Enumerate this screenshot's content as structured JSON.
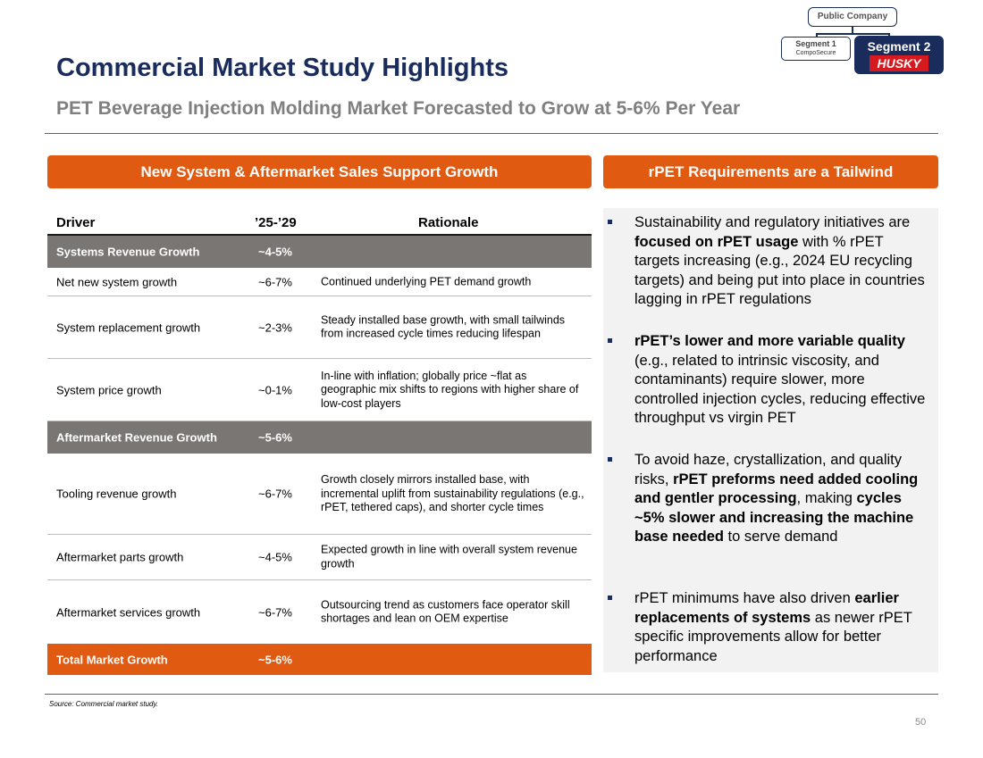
{
  "header": {
    "title": "Commercial Market Study Highlights",
    "subtitle": "PET Beverage Injection Molding Market Forecasted to Grow at 5-6% Per Year"
  },
  "badges": {
    "public": "Public Company",
    "segment1": "Segment 1",
    "segment1_logo": "CompoSecure",
    "segment2": "Segment 2",
    "segment2_logo": "HUSKY"
  },
  "left_panel": {
    "header": "New System & Aftermarket Sales Support Growth",
    "columns": [
      "Driver",
      "’25-’29",
      "Rationale"
    ],
    "rows": [
      {
        "driver": "Systems Revenue Growth",
        "range": "~4-5%",
        "rationale": ""
      },
      {
        "driver": "Net new system growth",
        "range": "~6-7%",
        "rationale": "Continued underlying PET demand growth"
      },
      {
        "driver": "System replacement growth",
        "range": "~2-3%",
        "rationale": "Steady installed base growth, with small tailwinds from increased cycle times reducing lifespan"
      },
      {
        "driver": "System price growth",
        "range": "~0-1%",
        "rationale": "In-line with inflation; globally price ~flat as geographic mix shifts to regions with higher share of low-cost players"
      },
      {
        "driver": "Aftermarket Revenue Growth",
        "range": "~5-6%",
        "rationale": ""
      },
      {
        "driver": "Tooling revenue growth",
        "range": "~6-7%",
        "rationale": "Growth closely mirrors installed base, with incremental uplift from sustainability regulations (e.g., rPET, tethered caps), and shorter cycle times"
      },
      {
        "driver": "Aftermarket parts growth",
        "range": "~4-5%",
        "rationale": "Expected growth in line with overall system revenue growth"
      },
      {
        "driver": "Aftermarket services growth",
        "range": "~6-7%",
        "rationale": "Outsourcing trend as customers face operator skill shortages and lean on OEM expertise"
      },
      {
        "driver": "Total Market Growth",
        "range": "~5-6%",
        "rationale": ""
      }
    ]
  },
  "right_panel": {
    "header": "rPET Requirements are a Tailwind",
    "bullets": [
      {
        "t1": "Sustainability and regulatory initiatives are ",
        "b1": "focused on rPET usage",
        "t2": " with % rPET targets increasing (e.g., 2024 EU recycling targets) and being put into place in countries lagging in rPET regulations",
        "b2": "",
        "t3": "",
        "b3": "",
        "t4": ""
      },
      {
        "t1": "",
        "b1": "rPET’s lower and more variable quality",
        "t2": " (e.g., related to intrinsic viscosity, and contaminants) require slower, more controlled injection cycles, reducing effective throughput vs virgin PET",
        "b2": "",
        "t3": "",
        "b3": "",
        "t4": ""
      },
      {
        "t1": "To avoid haze, crystallization, and quality risks, ",
        "b1": "rPET preforms need added cooling and gentler processing",
        "t2": ", making ",
        "b2": "cycles ~5% slower and increasing the machine base needed",
        "t3": " to serve demand",
        "b3": "",
        "t4": ""
      },
      {
        "t1": "rPET minimums have also driven ",
        "b1": "earlier replacements of systems",
        "t2": " as newer rPET specific improvements allow for better performance",
        "b2": "",
        "t3": "",
        "b3": "",
        "t4": ""
      }
    ]
  },
  "footer": {
    "source": "Source: Commercial market study.",
    "page_number": "50"
  },
  "colors": {
    "navy": "#1a2c5c",
    "orange": "#e05a12",
    "gray_row": "#7a7674",
    "panel_bg": "#f2f2f2"
  }
}
